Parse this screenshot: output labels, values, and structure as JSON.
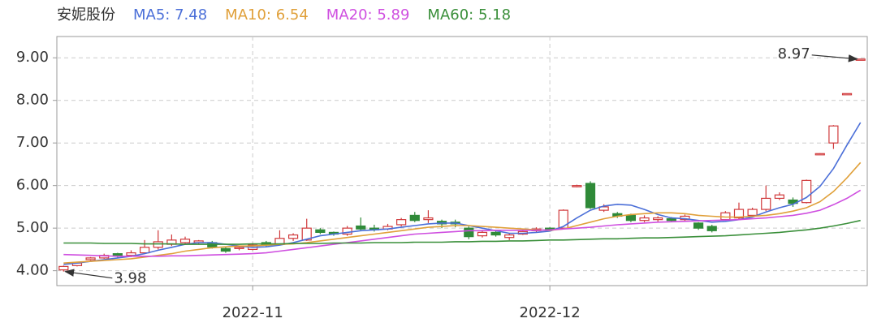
{
  "chart_data": {
    "type": "candlestick",
    "title": "安妮股份",
    "categories": [
      null,
      null,
      null,
      null,
      null,
      null,
      null,
      null,
      null,
      null,
      null,
      null,
      null,
      null,
      "2022-11",
      null,
      null,
      null,
      null,
      null,
      null,
      null,
      null,
      null,
      null,
      null,
      null,
      null,
      null,
      null,
      null,
      null,
      null,
      null,
      null,
      null,
      "2022-12",
      null,
      null,
      null,
      null,
      null,
      null,
      null,
      null,
      null,
      null,
      null,
      null,
      null,
      null,
      null,
      null,
      null,
      null,
      null,
      null,
      null,
      null,
      null
    ],
    "open": [
      4.02,
      4.12,
      4.26,
      4.3,
      4.4,
      4.36,
      4.42,
      4.55,
      4.62,
      4.66,
      4.66,
      4.66,
      4.52,
      4.52,
      4.5,
      4.66,
      4.62,
      4.76,
      4.72,
      4.96,
      4.9,
      4.86,
      5.05,
      5.0,
      4.98,
      5.08,
      5.3,
      5.2,
      5.16,
      5.14,
      5.0,
      4.82,
      4.9,
      4.78,
      4.86,
      4.94,
      5.0,
      5.0,
      5.98,
      6.05,
      5.42,
      5.34,
      5.3,
      5.18,
      5.2,
      5.22,
      5.2,
      5.12,
      5.04,
      5.2,
      5.24,
      5.3,
      5.44,
      5.7,
      5.66,
      5.6,
      6.73,
      7.0,
      8.14,
      8.96
    ],
    "high": [
      4.12,
      4.2,
      4.32,
      4.4,
      4.42,
      4.48,
      4.72,
      4.95,
      4.85,
      4.8,
      4.72,
      4.7,
      4.55,
      4.57,
      4.65,
      4.7,
      4.95,
      4.88,
      5.22,
      5.0,
      4.92,
      5.05,
      5.25,
      5.08,
      5.1,
      5.24,
      5.38,
      5.42,
      5.2,
      5.2,
      5.04,
      4.96,
      4.95,
      4.88,
      4.96,
      5.02,
      5.02,
      5.44,
      6.02,
      6.1,
      5.56,
      5.38,
      5.34,
      5.3,
      5.28,
      5.26,
      5.32,
      5.14,
      5.08,
      5.4,
      5.6,
      5.48,
      6.0,
      5.84,
      5.72,
      6.14,
      6.76,
      7.42,
      8.16,
      8.97
    ],
    "low": [
      3.98,
      4.1,
      4.24,
      4.28,
      4.3,
      4.32,
      4.4,
      4.5,
      4.58,
      4.62,
      4.62,
      4.52,
      4.42,
      4.48,
      4.48,
      4.56,
      4.6,
      4.7,
      4.7,
      4.86,
      4.82,
      4.82,
      4.94,
      4.92,
      4.95,
      5.04,
      5.14,
      5.12,
      5.0,
      5.02,
      4.74,
      4.78,
      4.8,
      4.72,
      4.84,
      4.9,
      4.92,
      4.98,
      5.96,
      5.45,
      5.38,
      5.24,
      5.14,
      5.14,
      5.14,
      5.16,
      5.16,
      4.96,
      4.9,
      5.18,
      5.2,
      5.26,
      5.4,
      5.66,
      5.5,
      5.58,
      6.72,
      6.86,
      8.14,
      8.96
    ],
    "close": [
      4.1,
      4.18,
      4.3,
      4.36,
      4.34,
      4.42,
      4.55,
      4.68,
      4.72,
      4.74,
      4.7,
      4.56,
      4.46,
      4.55,
      4.6,
      4.6,
      4.76,
      4.84,
      5.0,
      4.9,
      4.86,
      5.0,
      4.98,
      4.96,
      5.04,
      5.2,
      5.18,
      5.24,
      5.1,
      5.1,
      4.8,
      4.9,
      4.84,
      4.84,
      4.92,
      4.98,
      4.96,
      5.42,
      6.0,
      5.48,
      5.5,
      5.28,
      5.18,
      5.24,
      5.24,
      5.18,
      5.28,
      5.0,
      4.94,
      5.36,
      5.44,
      5.44,
      5.7,
      5.78,
      5.58,
      6.12,
      6.75,
      7.4,
      8.16,
      8.97
    ],
    "up_color": "#d0393b",
    "down_color": "#2f8a38",
    "series": [
      {
        "name": "MA5: 7.48",
        "color": "#4b6fd8",
        "values": [
          4.15,
          4.18,
          4.22,
          4.26,
          4.3,
          4.34,
          4.4,
          4.48,
          4.55,
          4.62,
          4.66,
          4.66,
          4.62,
          4.58,
          4.55,
          4.56,
          4.6,
          4.66,
          4.74,
          4.82,
          4.86,
          4.9,
          4.94,
          4.96,
          4.98,
          5.02,
          5.06,
          5.1,
          5.12,
          5.12,
          5.06,
          5.0,
          4.94,
          4.88,
          4.88,
          4.9,
          4.93,
          5.04,
          5.24,
          5.42,
          5.52,
          5.56,
          5.54,
          5.44,
          5.32,
          5.24,
          5.22,
          5.18,
          5.14,
          5.16,
          5.2,
          5.26,
          5.38,
          5.48,
          5.56,
          5.72,
          5.98,
          6.4,
          6.95,
          7.48
        ]
      },
      {
        "name": "MA10: 6.54",
        "color": "#e0a03a",
        "values": [
          4.18,
          4.2,
          4.22,
          4.24,
          4.26,
          4.28,
          4.32,
          4.36,
          4.4,
          4.46,
          4.5,
          4.54,
          4.56,
          4.58,
          4.58,
          4.6,
          4.62,
          4.63,
          4.66,
          4.7,
          4.74,
          4.78,
          4.82,
          4.86,
          4.9,
          4.94,
          4.98,
          5.02,
          5.04,
          5.06,
          5.06,
          5.04,
          5.02,
          5.0,
          4.98,
          4.96,
          4.95,
          4.98,
          5.06,
          5.14,
          5.22,
          5.28,
          5.32,
          5.34,
          5.36,
          5.36,
          5.34,
          5.3,
          5.28,
          5.26,
          5.26,
          5.28,
          5.3,
          5.34,
          5.4,
          5.48,
          5.62,
          5.86,
          6.18,
          6.54
        ]
      },
      {
        "name": "MA20: 5.89",
        "color": "#cf4fe0",
        "values": [
          4.38,
          4.37,
          4.36,
          4.35,
          4.34,
          4.34,
          4.34,
          4.34,
          4.35,
          4.35,
          4.36,
          4.37,
          4.38,
          4.39,
          4.4,
          4.42,
          4.46,
          4.5,
          4.54,
          4.58,
          4.62,
          4.66,
          4.7,
          4.74,
          4.78,
          4.82,
          4.86,
          4.88,
          4.9,
          4.92,
          4.94,
          4.94,
          4.95,
          4.95,
          4.95,
          4.95,
          4.96,
          4.98,
          5.0,
          5.02,
          5.05,
          5.08,
          5.1,
          5.12,
          5.14,
          5.15,
          5.16,
          5.17,
          5.18,
          5.19,
          5.2,
          5.22,
          5.24,
          5.27,
          5.3,
          5.35,
          5.42,
          5.55,
          5.7,
          5.89
        ]
      },
      {
        "name": "MA60: 5.18",
        "color": "#3a8f3a",
        "values": [
          4.65,
          4.65,
          4.65,
          4.64,
          4.64,
          4.64,
          4.63,
          4.63,
          4.63,
          4.62,
          4.62,
          4.62,
          4.62,
          4.62,
          4.63,
          4.63,
          4.63,
          4.64,
          4.64,
          4.64,
          4.65,
          4.65,
          4.65,
          4.66,
          4.66,
          4.66,
          4.67,
          4.67,
          4.67,
          4.68,
          4.68,
          4.69,
          4.69,
          4.7,
          4.7,
          4.71,
          4.72,
          4.72,
          4.73,
          4.74,
          4.75,
          4.75,
          4.76,
          4.77,
          4.77,
          4.78,
          4.79,
          4.8,
          4.81,
          4.82,
          4.84,
          4.86,
          4.88,
          4.9,
          4.93,
          4.96,
          5.0,
          5.05,
          5.11,
          5.18
        ]
      }
    ],
    "ylim": [
      3.65,
      9.5
    ],
    "yticks": [
      {
        "value": 4,
        "label": "4.00"
      },
      {
        "value": 5,
        "label": "5.00"
      },
      {
        "value": 6,
        "label": "6.00"
      },
      {
        "value": 7,
        "label": "7.00"
      },
      {
        "value": 8,
        "label": "8.00"
      },
      {
        "value": 9,
        "label": "9.00"
      }
    ],
    "grid": true
  }
}
